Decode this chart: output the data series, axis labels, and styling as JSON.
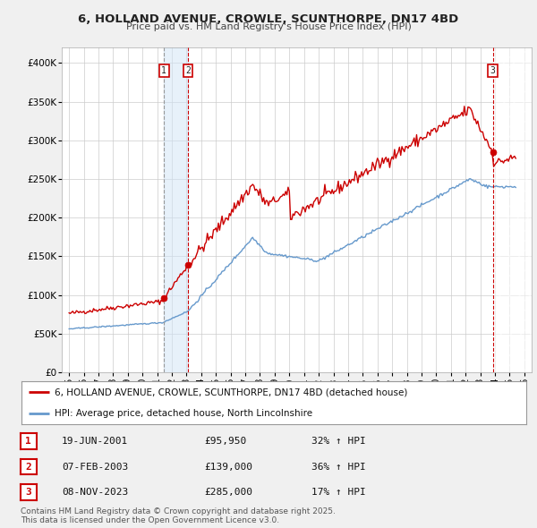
{
  "title": "6, HOLLAND AVENUE, CROWLE, SCUNTHORPE, DN17 4BD",
  "subtitle": "Price paid vs. HM Land Registry's House Price Index (HPI)",
  "property_label": "6, HOLLAND AVENUE, CROWLE, SCUNTHORPE, DN17 4BD (detached house)",
  "hpi_label": "HPI: Average price, detached house, North Lincolnshire",
  "sales": [
    {
      "num": 1,
      "date": "19-JUN-2001",
      "price": 95950,
      "year": 2001.46,
      "pct": "32%",
      "dir": "↑"
    },
    {
      "num": 2,
      "date": "07-FEB-2003",
      "price": 139000,
      "year": 2003.1,
      "pct": "36%",
      "dir": "↑"
    },
    {
      "num": 3,
      "date": "08-NOV-2023",
      "price": 285000,
      "year": 2023.85,
      "pct": "17%",
      "dir": "↑"
    }
  ],
  "property_color": "#cc0000",
  "hpi_color": "#6699cc",
  "background_color": "#f0f0f0",
  "plot_bg_color": "#ffffff",
  "grid_color": "#cccccc",
  "ylim": [
    0,
    420000
  ],
  "xlim_start": 1994.5,
  "xlim_end": 2026.5,
  "footnote": "Contains HM Land Registry data © Crown copyright and database right 2025.\nThis data is licensed under the Open Government Licence v3.0.",
  "title_fontsize": 9.5,
  "subtitle_fontsize": 8.0,
  "tick_fontsize": 7.5,
  "legend_fontsize": 7.5,
  "table_fontsize": 8.0,
  "footnote_fontsize": 6.5
}
